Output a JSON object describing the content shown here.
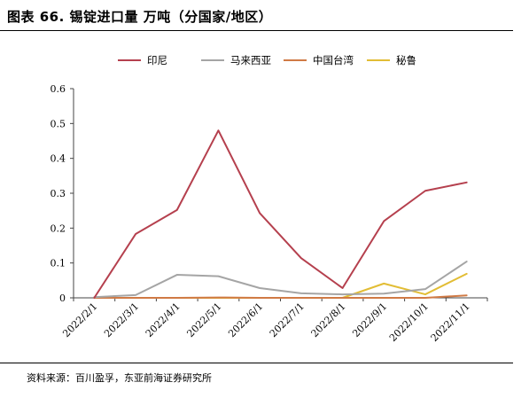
{
  "header": {
    "title": "图表 66. 锡锭进口量 万吨（分国家/地区）"
  },
  "footer": {
    "source": "资料来源：百川盈孚，东亚前海证券研究所"
  },
  "chart_data": {
    "type": "line",
    "title": "图表 66. 锡锭进口量 万吨（分国家/地区）",
    "xlabel": "",
    "ylabel": "",
    "x": [
      "2022/2/1",
      "2022/3/1",
      "2022/4/1",
      "2022/5/1",
      "2022/6/1",
      "2022/7/1",
      "2022/8/1",
      "2022/9/1",
      "2022/10/1",
      "2022/11/1"
    ],
    "ylim": [
      0,
      0.6
    ],
    "yticks": [
      "0",
      "0.1",
      "0.2",
      "0.3",
      "0.4",
      "0.5",
      "0.6"
    ],
    "grid": false,
    "legend_position": "top",
    "series": [
      {
        "name": "印尼",
        "color": "#b5404e",
        "values": [
          0.0,
          0.183,
          0.252,
          0.48,
          0.243,
          0.114,
          0.028,
          0.22,
          0.307,
          0.331
        ]
      },
      {
        "name": "马来西亚",
        "color": "#a5a5a5",
        "values": [
          0.002,
          0.008,
          0.066,
          0.062,
          0.028,
          0.013,
          0.01,
          0.012,
          0.025,
          0.104
        ]
      },
      {
        "name": "中国台湾",
        "color": "#d07a45",
        "values": [
          0.0,
          0.0,
          0.0,
          0.001,
          0.0,
          0.0,
          0.0,
          0.0,
          0.0,
          0.007
        ]
      },
      {
        "name": "秘鲁",
        "color": "#e2bd35",
        "values": [
          0.0,
          0.0,
          0.0,
          0.0,
          0.0,
          0.0,
          0.0,
          0.041,
          0.01,
          0.069
        ]
      }
    ]
  }
}
